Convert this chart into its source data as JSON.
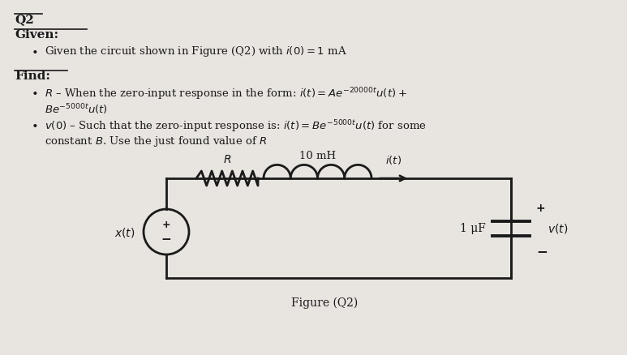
{
  "bg_color": "#e8e4e0",
  "text_color": "#1a1a1a",
  "title": "Q2",
  "given_label": "Given:",
  "given_bullet": "Given the circuit shown in Figure (Q2) with $i(0) = 1$ mA",
  "find_label": "Find:",
  "find_bullet1_part1": "$R$ – When the zero-input response in the form: $i(t) = Ae^{-20000t}u(t) +$",
  "find_bullet1_part2": "$Be^{-5000t}u(t)$",
  "find_bullet2_part1": "$v(0)$ – Such that the zero-input response is: $i(t) = Be^{-5000t}u(t)$ for some",
  "find_bullet2_part2": "constant $B$. Use the just found value of $R$",
  "fig_caption": "Figure (Q2)",
  "circuit": {
    "source_label": "$x(t)$",
    "R_label": "$R$",
    "L_label": "10 mH",
    "i_label": "$i(t)$",
    "C_label": "1 μF",
    "v_label": "$v(t)$"
  }
}
